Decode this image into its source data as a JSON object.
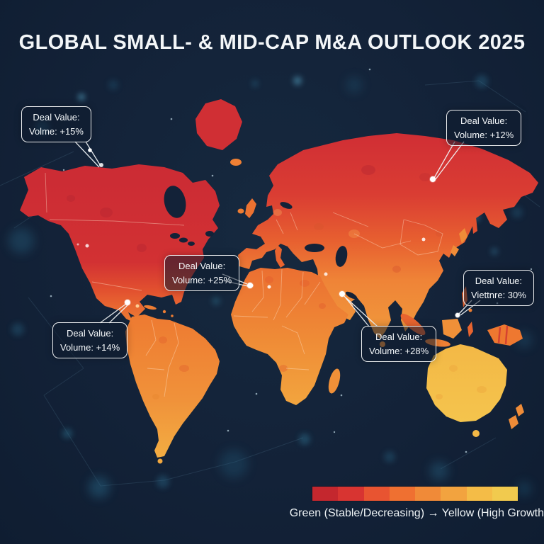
{
  "title": "GLOBAL SMALL- & MID-CAP M&A OUTLOOK 2025",
  "map": {
    "callouts": [
      {
        "region": "north-america",
        "line1": "Deal Value:",
        "line2": "Volme: +15%"
      },
      {
        "region": "northern-asia",
        "line1": "Deal Value:",
        "line2": "Volume: +12%"
      },
      {
        "region": "africa",
        "line1": "Deal Value:",
        "line2": "Volume: +25%"
      },
      {
        "region": "southeast-asia",
        "line1": "Deal Value:",
        "line2": "Viettnre: 30%"
      },
      {
        "region": "south-america",
        "line1": "Deal Value:",
        "line2": "Volume: +14%"
      },
      {
        "region": "south-asia",
        "line1": "Deal Value:",
        "line2": "Volume: +28%"
      }
    ]
  },
  "legend": {
    "caption": "Green (Stable/Decreasing) → Yellow (High Growth)",
    "bullet_color": "#ef7a31",
    "gradient_colors": [
      "#c4272e",
      "#d83431",
      "#e85431",
      "#ef7031",
      "#f08a38",
      "#f2a33f",
      "#f4bc47",
      "#f1ca4e"
    ]
  },
  "colors": {
    "background": "#132238",
    "heat_low": "#c4272e",
    "heat_high": "#f1ca4e",
    "callout_border": "#ffffff",
    "text": "#f4f7f9"
  },
  "chart_data": {
    "type": "heatmap",
    "subtype": "world-choropleth-infographic",
    "title": "GLOBAL SMALL- & MID-CAP M&A OUTLOOK 2025",
    "regions": [
      {
        "anchor": "North America",
        "label": "Volme: +15%",
        "value_pct": 15
      },
      {
        "anchor": "Northern Asia/Russia",
        "label": "Volume: +12%",
        "value_pct": 12
      },
      {
        "anchor": "West Africa",
        "label": "Volume: +25%",
        "value_pct": 25
      },
      {
        "anchor": "Southeast Asia",
        "label": "Viettnre: 30%",
        "value_pct": 30
      },
      {
        "anchor": "South America",
        "label": "Volume: +14%",
        "value_pct": 14
      },
      {
        "anchor": "South Asia",
        "label": "Volume: +28%",
        "value_pct": 28
      }
    ],
    "legend": "Green (Stable/Decreasing) → Yellow (High Growth)",
    "color_scale": [
      "#c4272e",
      "#d83431",
      "#e85431",
      "#ef7031",
      "#f08a38",
      "#f2a33f",
      "#f4bc47",
      "#f1ca4e"
    ]
  }
}
